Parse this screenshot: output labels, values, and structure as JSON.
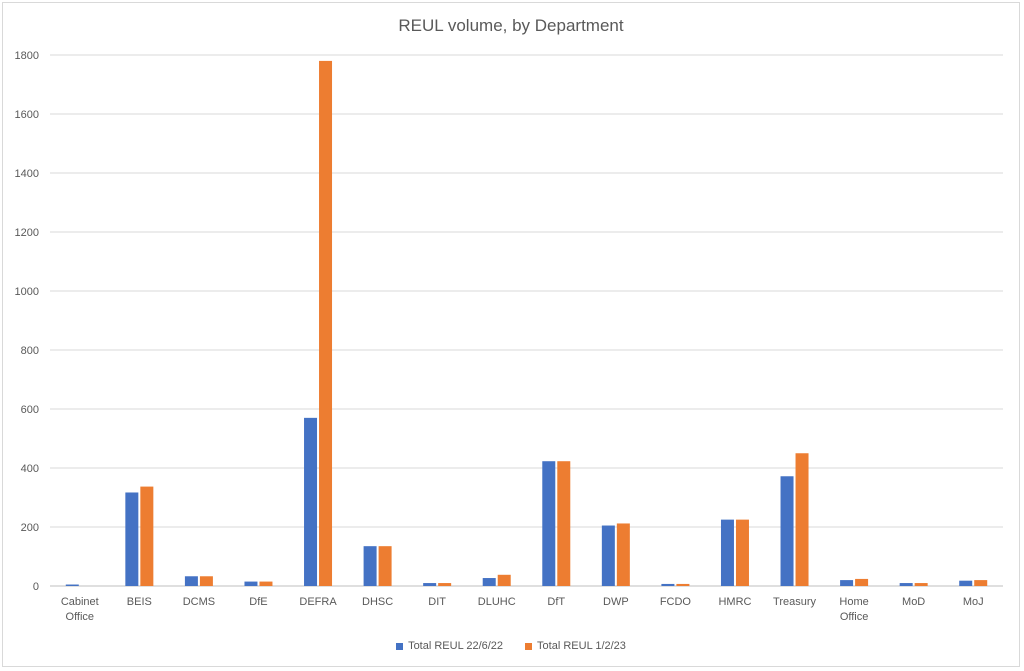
{
  "chart_data": {
    "type": "bar",
    "title": "REUL volume, by Department",
    "xlabel": "",
    "ylabel": "",
    "ylim": [
      0,
      1800
    ],
    "yticks": [
      "0",
      "200",
      "400",
      "600",
      "800",
      "1000",
      "1200",
      "1400",
      "1600",
      "1800"
    ],
    "grid": true,
    "legend_position": "bottom",
    "categories": [
      [
        "Cabinet",
        "Office"
      ],
      [
        "BEIS"
      ],
      [
        "DCMS"
      ],
      [
        "DfE"
      ],
      [
        "DEFRA"
      ],
      [
        "DHSC"
      ],
      [
        "DIT"
      ],
      [
        "DLUHC"
      ],
      [
        "DfT"
      ],
      [
        "DWP"
      ],
      [
        "FCDO"
      ],
      [
        "HMRC"
      ],
      [
        "Treasury"
      ],
      [
        "Home",
        "Office"
      ],
      [
        "MoD"
      ],
      [
        "MoJ"
      ]
    ],
    "series": [
      {
        "name": "Total REUL 22/6/22",
        "color": "#4472c4",
        "values": [
          5,
          317,
          33,
          15,
          570,
          135,
          10,
          27,
          423,
          205,
          7,
          225,
          372,
          20,
          10,
          18
        ]
      },
      {
        "name": "Total REUL 1/2/23",
        "color": "#ed7d31",
        "values": [
          0,
          337,
          33,
          15,
          1780,
          135,
          10,
          38,
          423,
          212,
          7,
          225,
          450,
          24,
          10,
          20
        ]
      }
    ]
  }
}
